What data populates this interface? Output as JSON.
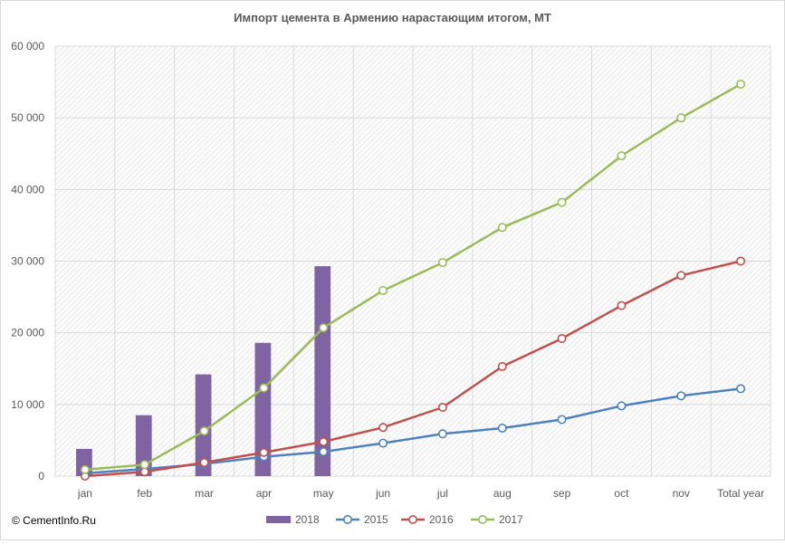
{
  "copyright": "© CementInfo.Ru",
  "chart_data": {
    "type": "bar+line",
    "title": "Импорт цемента в Армению нарастающим  итогом, МТ",
    "categories": [
      "jan",
      "feb",
      "mar",
      "apr",
      "may",
      "jun",
      "jul",
      "aug",
      "sep",
      "oct",
      "nov",
      "Total year"
    ],
    "ylim": [
      0,
      60000
    ],
    "y_ticks": [
      0,
      10000,
      20000,
      30000,
      40000,
      50000,
      60000
    ],
    "y_tick_labels": [
      "0",
      "10 000",
      "20 000",
      "30 000",
      "40 000",
      "50 000",
      "60 000"
    ],
    "grid": true,
    "legend_position": "bottom",
    "series": [
      {
        "name": "2018",
        "kind": "bar",
        "color": "#8064a2",
        "values": [
          3800,
          8500,
          14200,
          18600,
          29300,
          null,
          null,
          null,
          null,
          null,
          null,
          null
        ]
      },
      {
        "name": "2015",
        "kind": "line",
        "color": "#4f81bd",
        "values": [
          400,
          1000,
          1700,
          2700,
          3400,
          4600,
          5900,
          6700,
          7900,
          9800,
          11200,
          12200
        ]
      },
      {
        "name": "2016",
        "kind": "line",
        "color": "#c0504d",
        "values": [
          0,
          600,
          1900,
          3300,
          4800,
          6800,
          9600,
          15300,
          19200,
          23800,
          28000,
          30000
        ]
      },
      {
        "name": "2017",
        "kind": "line",
        "color": "#9bbb59",
        "values": [
          900,
          1600,
          6300,
          12300,
          20700,
          25900,
          29800,
          34700,
          38200,
          44700,
          50000,
          54700
        ]
      }
    ]
  }
}
